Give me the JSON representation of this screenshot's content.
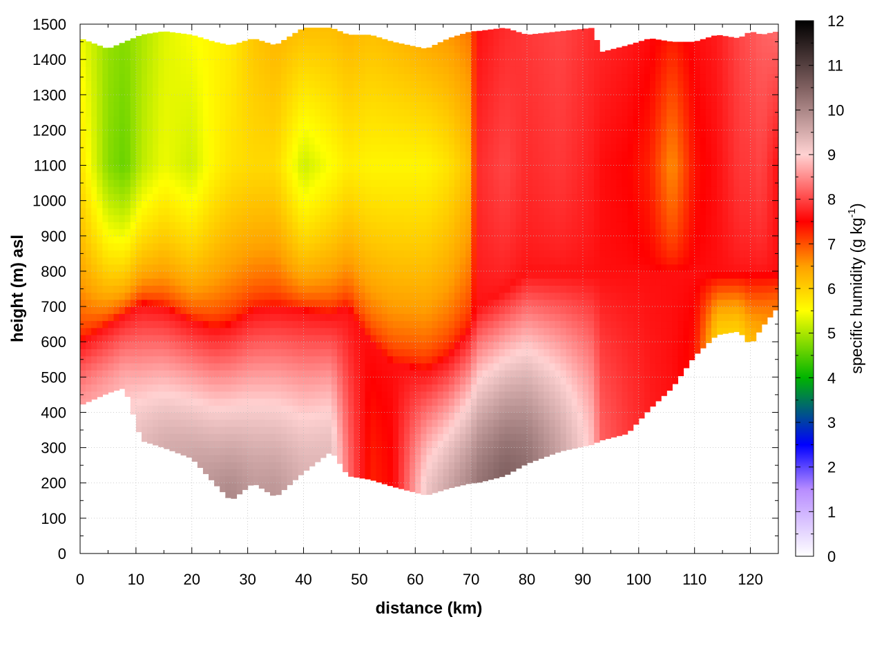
{
  "chart_data": {
    "type": "heatmap",
    "title": "",
    "xlabel": "distance (km)",
    "ylabel": "height (m) asl",
    "xlim": [
      0,
      125
    ],
    "ylim": [
      0,
      1500
    ],
    "x_ticks": [
      "0",
      "10",
      "20",
      "30",
      "40",
      "50",
      "60",
      "70",
      "80",
      "90",
      "100",
      "110",
      "120"
    ],
    "y_ticks": [
      "0",
      "100",
      "200",
      "300",
      "400",
      "500",
      "600",
      "700",
      "800",
      "900",
      "1000",
      "1100",
      "1200",
      "1300",
      "1400",
      "1500"
    ],
    "grid": true,
    "colorbar": {
      "label_main": "specific humidity (g kg",
      "label_sup": "-1",
      "label_end": ")",
      "range": [
        0,
        12
      ],
      "ticks": [
        "0",
        "1",
        "2",
        "3",
        "4",
        "5",
        "6",
        "7",
        "8",
        "9",
        "10",
        "11",
        "12"
      ],
      "colors": [
        "#ffffff",
        "#b78cff",
        "#0000ff",
        "#00b400",
        "#ffff00",
        "#ffa000",
        "#ff0000",
        "#ffd2d2",
        "#806060",
        "#000000"
      ],
      "stops": [
        0,
        1.5,
        2.5,
        4,
        5.5,
        6.5,
        7.5,
        9,
        10.5,
        12
      ]
    },
    "profiles": [
      {
        "x": 0,
        "bottom": 420,
        "top": 1460,
        "base": 8.6,
        "top_q": 5.4,
        "mid_q": 5.8,
        "trans": 600
      },
      {
        "x": 5,
        "bottom": 455,
        "top": 1430,
        "base": 8.7,
        "top_q": 4.9,
        "mid_q": 4.8,
        "trans": 650
      },
      {
        "x": 8,
        "bottom": 470,
        "top": 1450,
        "base": 8.8,
        "top_q": 4.8,
        "mid_q": 4.6,
        "trans": 680
      },
      {
        "x": 11,
        "bottom": 320,
        "top": 1470,
        "base": 9.3,
        "top_q": 5.0,
        "mid_q": 5.1,
        "trans": 710
      },
      {
        "x": 15,
        "bottom": 300,
        "top": 1480,
        "base": 9.5,
        "top_q": 5.3,
        "mid_q": 5.4,
        "trans": 700
      },
      {
        "x": 20,
        "bottom": 270,
        "top": 1470,
        "base": 9.6,
        "top_q": 5.5,
        "mid_q": 5.2,
        "trans": 660
      },
      {
        "x": 24,
        "bottom": 200,
        "top": 1450,
        "base": 9.8,
        "top_q": 5.6,
        "mid_q": 5.6,
        "trans": 640
      },
      {
        "x": 27,
        "bottom": 150,
        "top": 1440,
        "base": 10.0,
        "top_q": 5.7,
        "mid_q": 5.8,
        "trans": 650
      },
      {
        "x": 31,
        "bottom": 200,
        "top": 1460,
        "base": 9.7,
        "top_q": 6.1,
        "mid_q": 5.9,
        "trans": 690
      },
      {
        "x": 35,
        "bottom": 160,
        "top": 1440,
        "base": 9.8,
        "top_q": 6.3,
        "mid_q": 5.9,
        "trans": 700
      },
      {
        "x": 40,
        "bottom": 230,
        "top": 1490,
        "base": 9.4,
        "top_q": 6.2,
        "mid_q": 5.2,
        "trans": 690
      },
      {
        "x": 45,
        "bottom": 290,
        "top": 1490,
        "base": 9.3,
        "top_q": 6.2,
        "mid_q": 5.5,
        "trans": 680
      },
      {
        "x": 48,
        "bottom": 220,
        "top": 1470,
        "base": 8.3,
        "top_q": 6.3,
        "mid_q": 5.7,
        "trans": 700
      },
      {
        "x": 52,
        "bottom": 210,
        "top": 1470,
        "base": 7.3,
        "top_q": 6.2,
        "mid_q": 5.6,
        "trans": 600
      },
      {
        "x": 56,
        "bottom": 190,
        "top": 1450,
        "base": 7.5,
        "top_q": 6.3,
        "mid_q": 5.6,
        "trans": 540
      },
      {
        "x": 62,
        "bottom": 165,
        "top": 1430,
        "base": 9.2,
        "top_q": 6.5,
        "mid_q": 5.6,
        "trans": 520
      },
      {
        "x": 66,
        "bottom": 185,
        "top": 1460,
        "base": 9.6,
        "top_q": 6.6,
        "mid_q": 5.8,
        "trans": 560
      },
      {
        "x": 70,
        "bottom": 200,
        "top": 1480,
        "base": 10.0,
        "top_q": 6.8,
        "mid_q": 6.2,
        "trans": 640
      },
      {
        "x": 71,
        "bottom": 200,
        "top": 1480,
        "base": 10.2,
        "top_q": 7.6,
        "mid_q": 7.8,
        "trans": 700
      },
      {
        "x": 76,
        "bottom": 220,
        "top": 1490,
        "base": 10.5,
        "top_q": 7.8,
        "mid_q": 8.0,
        "trans": 750
      },
      {
        "x": 80,
        "bottom": 255,
        "top": 1470,
        "base": 10.3,
        "top_q": 7.9,
        "mid_q": 7.8,
        "trans": 800
      },
      {
        "x": 86,
        "bottom": 290,
        "top": 1480,
        "base": 9.6,
        "top_q": 8.0,
        "mid_q": 7.9,
        "trans": 800
      },
      {
        "x": 92,
        "bottom": 310,
        "top": 1490,
        "base": 8.8,
        "top_q": 7.8,
        "mid_q": 7.7,
        "trans": 800
      },
      {
        "x": 93,
        "bottom": 320,
        "top": 1420,
        "base": 8.2,
        "top_q": 7.8,
        "mid_q": 7.6,
        "trans": 800
      },
      {
        "x": 98,
        "bottom": 340,
        "top": 1440,
        "base": 7.9,
        "top_q": 7.7,
        "mid_q": 7.5,
        "trans": 800
      },
      {
        "x": 102,
        "bottom": 410,
        "top": 1460,
        "base": 7.7,
        "top_q": 7.6,
        "mid_q": 7.3,
        "trans": 800
      },
      {
        "x": 106,
        "bottom": 470,
        "top": 1450,
        "base": 7.6,
        "top_q": 7.4,
        "mid_q": 6.6,
        "trans": 800
      },
      {
        "x": 110,
        "bottom": 560,
        "top": 1450,
        "base": 7.4,
        "top_q": 7.6,
        "mid_q": 7.4,
        "trans": 800
      },
      {
        "x": 114,
        "bottom": 620,
        "top": 1470,
        "base": 6.0,
        "top_q": 7.7,
        "mid_q": 7.6,
        "trans": 800
      },
      {
        "x": 118,
        "bottom": 630,
        "top": 1460,
        "base": 6.0,
        "top_q": 8.0,
        "mid_q": 7.9,
        "trans": 800
      },
      {
        "x": 120,
        "bottom": 590,
        "top": 1480,
        "base": 6.2,
        "top_q": 8.1,
        "mid_q": 7.9,
        "trans": 800
      },
      {
        "x": 122,
        "bottom": 640,
        "top": 1470,
        "base": 6.5,
        "top_q": 8.2,
        "mid_q": 8.0,
        "trans": 800
      },
      {
        "x": 125,
        "bottom": 700,
        "top": 1480,
        "base": 6.8,
        "top_q": 8.3,
        "mid_q": 7.6,
        "trans": 800
      }
    ]
  }
}
